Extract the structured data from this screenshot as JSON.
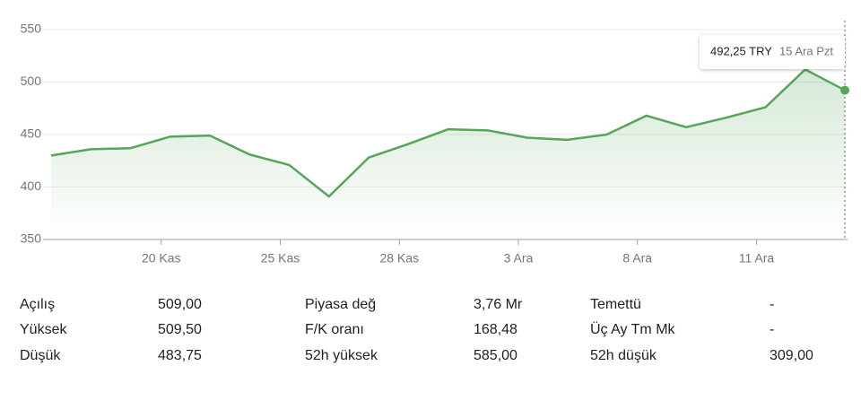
{
  "chart_data": {
    "type": "line",
    "categories": [
      null,
      null,
      null,
      "20 Kas",
      null,
      null,
      "25 Kas",
      null,
      null,
      "28 Kas",
      null,
      null,
      "3 Ara",
      null,
      null,
      "8 Ara",
      null,
      null,
      "11 Ara",
      null,
      null
    ],
    "values": [
      430,
      436,
      437,
      448,
      449,
      431,
      421,
      391,
      428,
      441,
      455,
      454,
      447,
      445,
      450,
      468,
      457,
      466,
      476,
      512,
      492.25
    ],
    "color": "#57a55a",
    "ylim": [
      350,
      550
    ],
    "yticks": [
      350,
      400,
      450,
      500,
      550
    ],
    "grid": true,
    "tooltip": {
      "value": "492,25 TRY",
      "date": "15 Ara Pzt"
    }
  },
  "stats": [
    [
      {
        "label": "Açılış",
        "value": "509,00"
      },
      {
        "label": "Piyasa değ",
        "value": "3,76 Mr"
      },
      {
        "label": "Temettü",
        "value": "-"
      }
    ],
    [
      {
        "label": "Yüksek",
        "value": "509,50"
      },
      {
        "label": "F/K oranı",
        "value": "168,48"
      },
      {
        "label": "Üç Ay Tm Mk",
        "value": "-"
      }
    ],
    [
      {
        "label": "Düşük",
        "value": "483,75"
      },
      {
        "label": "52h yüksek",
        "value": "585,00"
      },
      {
        "label": "52h düşük",
        "value": "309,00"
      }
    ]
  ]
}
